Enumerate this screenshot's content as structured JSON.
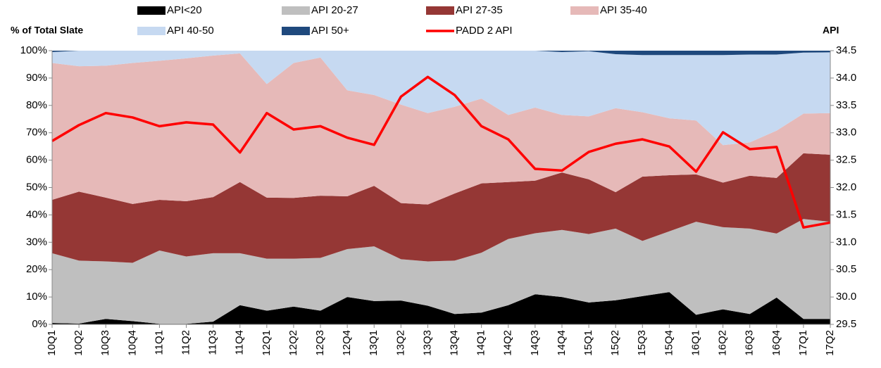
{
  "chart_data": {
    "type": "area",
    "y_label": "% of Total Slate",
    "y2_label": "API",
    "categories": [
      "10Q1",
      "10Q2",
      "10Q3",
      "10Q4",
      "11Q1",
      "11Q2",
      "11Q3",
      "11Q4",
      "12Q1",
      "12Q2",
      "12Q3",
      "12Q4",
      "13Q1",
      "13Q2",
      "13Q3",
      "13Q4",
      "14Q1",
      "14Q2",
      "14Q3",
      "14Q4",
      "15Q1",
      "15Q2",
      "15Q3",
      "15Q4",
      "16Q1",
      "16Q2",
      "16Q3",
      "16Q4",
      "17Q1",
      "17Q2"
    ],
    "series": [
      {
        "name": "API<20",
        "color": "#000000",
        "values": [
          0.5,
          0.3,
          2,
          1.2,
          0.2,
          0.2,
          1,
          7,
          5,
          6.5,
          5,
          10,
          8.5,
          8.7,
          6.8,
          3.8,
          4.3,
          7,
          11,
          10,
          8,
          8.8,
          10.3,
          11.8,
          3.5,
          5.5,
          3.8,
          9.8,
          2,
          2
        ]
      },
      {
        "name": "API 20-27",
        "color": "#bfbfbf",
        "values": [
          25.5,
          23,
          21,
          21.3,
          26.8,
          24.6,
          25,
          19,
          19,
          17.5,
          19.3,
          17.5,
          20,
          15.1,
          16.2,
          19.5,
          21.9,
          24.2,
          22.3,
          24.5,
          25,
          26.2,
          20.2,
          22.2,
          34,
          30,
          31.2,
          23.4,
          36.5,
          35.5
        ]
      },
      {
        "name": "API 27-35",
        "color": "#953735",
        "values": [
          19.5,
          25.2,
          23.3,
          21.5,
          18.5,
          20.2,
          20.5,
          26,
          22.3,
          22.2,
          22.7,
          19.3,
          22.1,
          20.5,
          20.8,
          24.5,
          25.3,
          20.8,
          19.2,
          21,
          20,
          13.3,
          23.5,
          20.5,
          17.3,
          16.3,
          19.3,
          20.3,
          24,
          24.5
        ]
      },
      {
        "name": "API 35-40",
        "color": "#e6b9b8",
        "values": [
          50,
          45.8,
          48.2,
          51.5,
          50.8,
          52.2,
          51.7,
          47,
          41.5,
          49.3,
          50.5,
          38.7,
          33.2,
          36,
          33.4,
          31.7,
          31,
          24.5,
          26.7,
          21,
          23,
          30.7,
          23.5,
          20.8,
          19.7,
          13.7,
          12.2,
          17.3,
          14.5,
          15.2
        ]
      },
      {
        "name": "API 40-50",
        "color": "#c6d9f1",
        "values": [
          4,
          5.7,
          5.5,
          4.5,
          3.7,
          2.8,
          1.8,
          1,
          12.2,
          4.5,
          2.5,
          14.5,
          16.2,
          19.7,
          22.8,
          20.5,
          17.5,
          23.5,
          20.8,
          23,
          23.8,
          19.7,
          20.9,
          23.1,
          23.9,
          32.9,
          32.1,
          27.8,
          22.3,
          22.2
        ]
      },
      {
        "name": "API 50+",
        "color": "#1f497d",
        "values": [
          0.5,
          0,
          0,
          0,
          0,
          0,
          0,
          0,
          0,
          0,
          0,
          0,
          0,
          0,
          0,
          0,
          0,
          0,
          0,
          0.5,
          0.2,
          1.3,
          1.6,
          1.6,
          1.6,
          1.6,
          1.4,
          1.4,
          0.7,
          0.6
        ]
      },
      {
        "name": "PADD 2 API",
        "color": "#ff0000",
        "axis": "y2",
        "values": [
          32.85,
          33.14,
          33.36,
          33.28,
          33.12,
          33.19,
          33.15,
          32.64,
          33.36,
          33.06,
          33.12,
          32.91,
          32.78,
          33.66,
          34.02,
          33.69,
          33.12,
          32.88,
          32.34,
          32.31,
          32.65,
          32.8,
          32.88,
          32.75,
          32.29,
          33.01,
          32.7,
          32.74,
          31.27,
          31.36
        ]
      }
    ],
    "ylim": [
      0,
      100
    ],
    "yticks": [
      {
        "value": 0,
        "label": "0%"
      },
      {
        "value": 10,
        "label": "10%"
      },
      {
        "value": 20,
        "label": "20%"
      },
      {
        "value": 30,
        "label": "30%"
      },
      {
        "value": 40,
        "label": "40%"
      },
      {
        "value": 50,
        "label": "50%"
      },
      {
        "value": 60,
        "label": "60%"
      },
      {
        "value": 70,
        "label": "70%"
      },
      {
        "value": 80,
        "label": "80%"
      },
      {
        "value": 90,
        "label": "90%"
      },
      {
        "value": 100,
        "label": "100%"
      }
    ],
    "y2lim": [
      29.5,
      34.5
    ],
    "y2ticks": [
      29.5,
      {
        "value": 30,
        "label": "30.0"
      },
      30.5,
      {
        "value": 31,
        "label": "31.0"
      },
      31.5,
      {
        "value": 32,
        "label": "32.0"
      },
      32.5,
      {
        "value": 33,
        "label": "33.0"
      },
      33.5,
      {
        "value": 34,
        "label": "34.0"
      },
      34.5
    ],
    "grid": false,
    "legend": "top"
  }
}
